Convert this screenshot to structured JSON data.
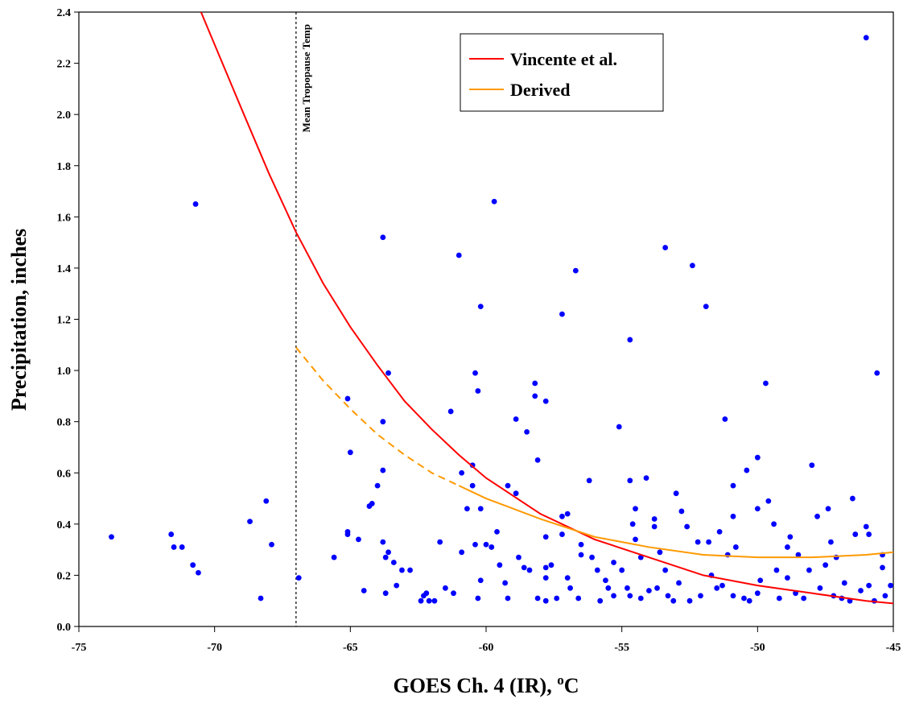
{
  "chart_data": {
    "type": "scatter",
    "x_label": [
      "GOES Ch. 4 (IR), ",
      "o",
      "C"
    ],
    "y_label": "Precipitation, inches",
    "xlim": [
      -75,
      -45
    ],
    "xticks": [
      -75,
      -70,
      -65,
      -60,
      -55,
      -50,
      -45
    ],
    "ylim": [
      0,
      2.4
    ],
    "yticks": [
      {
        "value": 0,
        "label": "0.0"
      },
      0.2,
      0.4,
      0.6,
      0.8,
      {
        "value": 1,
        "label": "1.0"
      },
      1.2,
      1.4,
      1.6,
      1.8,
      {
        "value": 2,
        "label": "2.0"
      },
      2.2,
      2.4
    ],
    "grid": false,
    "legend": "top-right",
    "annotations": [
      {
        "text": "Mean Tropopause Temp",
        "x": -67
      }
    ],
    "series": [
      {
        "type": "scatter",
        "color": "#0000ff",
        "x": [
          -73.8,
          -71.6,
          -71.5,
          -71.2,
          -70.7,
          -70.8,
          -70.6,
          -68.7,
          -68.3,
          -68.1,
          -67.9,
          -66.9,
          -65.6,
          -65.1,
          -65.1,
          -65.1,
          -65,
          -64.7,
          -64.5,
          -64.3,
          -64.2,
          -64,
          -63.8,
          -63.8,
          -63.8,
          -63.8,
          -63.7,
          -63.6,
          -63.6,
          -63.7,
          -63.4,
          -63.3,
          -63.1,
          -62.8,
          -62.4,
          -62.3,
          -62.2,
          -62.1,
          -61.9,
          -61.7,
          -61.5,
          -61.3,
          -61.2,
          -61,
          -60.9,
          -60.9,
          -60.7,
          -60.5,
          -60.5,
          -60.4,
          -60.4,
          -60.3,
          -60.2,
          -60.2,
          -60.2,
          -60.3,
          -60,
          -59.8,
          -59.7,
          -59.6,
          -59.5,
          -59.3,
          -59.2,
          -59.2,
          -58.9,
          -58.9,
          -58.8,
          -58.6,
          -58.5,
          -58.4,
          -58.2,
          -58.2,
          -58.1,
          -58.1,
          -57.8,
          -57.8,
          -57.8,
          -57.8,
          -57.8,
          -57.6,
          -57.4,
          -57.2,
          -57.2,
          -57.2,
          -57,
          -57,
          -56.9,
          -56.7,
          -56.6,
          -56.5,
          -56.5,
          -56.2,
          -56.1,
          -55.9,
          -55.8,
          -55.6,
          -55.5,
          -55.3,
          -55.1,
          -55,
          -54.8,
          -54.7,
          -54.7,
          -54.6,
          -54.5,
          -54.5,
          -54.3,
          -54.1,
          -54,
          -53.8,
          -53.8,
          -53.6,
          -53.4,
          -53.4,
          -53.3,
          -53,
          -52.8,
          -52.6,
          -52.4,
          -52.2,
          -51.9,
          -51.8,
          -51.7,
          -51.4,
          -51.2,
          -51.1,
          -50.9,
          -50.9,
          -50.8,
          -50.4,
          -50.3,
          -50,
          -50,
          -49.7,
          -49.6,
          -49.4,
          -49.3,
          -48.9,
          -48.8,
          -48.5,
          -48,
          -47.8,
          -47.4,
          -47.3,
          -47.1,
          -46.5,
          -46.4,
          -46,
          -46,
          -45.9,
          -45.6,
          -45.4,
          -45.4,
          -45.1,
          -53.1,
          -52.5,
          -51.5,
          -50.9,
          -50.5,
          -50,
          -49.2,
          -48.6,
          -48.3,
          -47.7,
          -47.2,
          -46.9,
          -46.6,
          -46.2,
          -45.7,
          -45.3,
          -54.3,
          -53.7,
          -52.9,
          -52.1,
          -51.3,
          -49.9,
          -48.9,
          -48.1,
          -47.5,
          -46.8,
          -45.9,
          -55.3,
          -54.7
        ],
        "values": [
          0.35,
          0.36,
          0.31,
          0.31,
          1.65,
          0.24,
          0.21,
          0.41,
          0.11,
          0.49,
          0.32,
          0.19,
          0.27,
          0.89,
          0.37,
          0.36,
          0.68,
          0.34,
          0.14,
          0.47,
          0.48,
          0.55,
          1.52,
          0.8,
          0.61,
          0.33,
          0.27,
          0.99,
          0.29,
          0.13,
          0.25,
          0.16,
          0.22,
          0.22,
          0.1,
          0.12,
          0.13,
          0.1,
          0.1,
          0.33,
          0.15,
          0.84,
          0.13,
          1.45,
          0.29,
          0.6,
          0.46,
          0.55,
          0.63,
          0.32,
          0.99,
          0.92,
          1.25,
          0.46,
          0.18,
          0.11,
          0.32,
          0.31,
          1.66,
          0.37,
          0.24,
          0.17,
          0.55,
          0.11,
          0.81,
          0.52,
          0.27,
          0.23,
          0.76,
          0.22,
          0.95,
          0.9,
          0.65,
          0.11,
          0.88,
          0.35,
          0.23,
          0.19,
          0.1,
          0.24,
          0.11,
          1.22,
          0.43,
          0.36,
          0.44,
          0.19,
          0.15,
          1.39,
          0.11,
          0.32,
          0.28,
          0.57,
          0.27,
          0.22,
          0.1,
          0.18,
          0.15,
          0.25,
          0.78,
          0.22,
          0.15,
          1.12,
          0.57,
          0.4,
          0.46,
          0.34,
          0.27,
          0.58,
          0.14,
          0.42,
          0.39,
          0.29,
          1.48,
          0.22,
          0.12,
          0.52,
          0.45,
          0.39,
          1.41,
          0.33,
          1.25,
          0.33,
          0.2,
          0.37,
          0.81,
          0.28,
          0.55,
          0.43,
          0.31,
          0.61,
          0.1,
          0.66,
          0.46,
          0.95,
          0.49,
          0.4,
          0.22,
          0.31,
          0.35,
          0.28,
          0.63,
          0.43,
          0.46,
          0.33,
          0.27,
          0.5,
          0.36,
          2.3,
          0.39,
          0.36,
          0.99,
          0.28,
          0.23,
          0.16,
          0.1,
          0.1,
          0.15,
          0.12,
          0.11,
          0.13,
          0.11,
          0.13,
          0.11,
          0.15,
          0.12,
          0.11,
          0.1,
          0.14,
          0.1,
          0.12,
          0.11,
          0.15,
          0.17,
          0.12,
          0.16,
          0.18,
          0.19,
          0.22,
          0.24,
          0.17,
          0.16,
          0.12,
          0.12
        ]
      },
      {
        "type": "line",
        "name": "Vincente et al.",
        "color": "#ff0000",
        "x": [
          -70.5,
          -69,
          -68,
          -67,
          -66,
          -65,
          -64,
          -63,
          -62,
          -61,
          -60,
          -58,
          -56,
          -54,
          -52,
          -50,
          -48,
          -46,
          -45
        ],
        "values": [
          2.4,
          2.02,
          1.77,
          1.54,
          1.34,
          1.17,
          1.02,
          0.88,
          0.77,
          0.67,
          0.58,
          0.44,
          0.34,
          0.27,
          0.2,
          0.16,
          0.13,
          0.1,
          0.09
        ]
      },
      {
        "type": "line",
        "name": "Derived",
        "color": "#ff9900",
        "segments": [
          {
            "dashed": true,
            "x": [
              -67,
              -66,
              -65,
              -64,
              -63,
              -62,
              -61
            ],
            "values": [
              1.09,
              0.96,
              0.85,
              0.75,
              0.67,
              0.6,
              0.55
            ]
          },
          {
            "dashed": false,
            "x": [
              -61,
              -60,
              -58,
              -56,
              -54,
              -52,
              -50,
              -48,
              -46,
              -45
            ],
            "values": [
              0.55,
              0.5,
              0.42,
              0.35,
              0.31,
              0.28,
              0.27,
              0.27,
              0.28,
              0.29
            ]
          }
        ]
      }
    ]
  }
}
